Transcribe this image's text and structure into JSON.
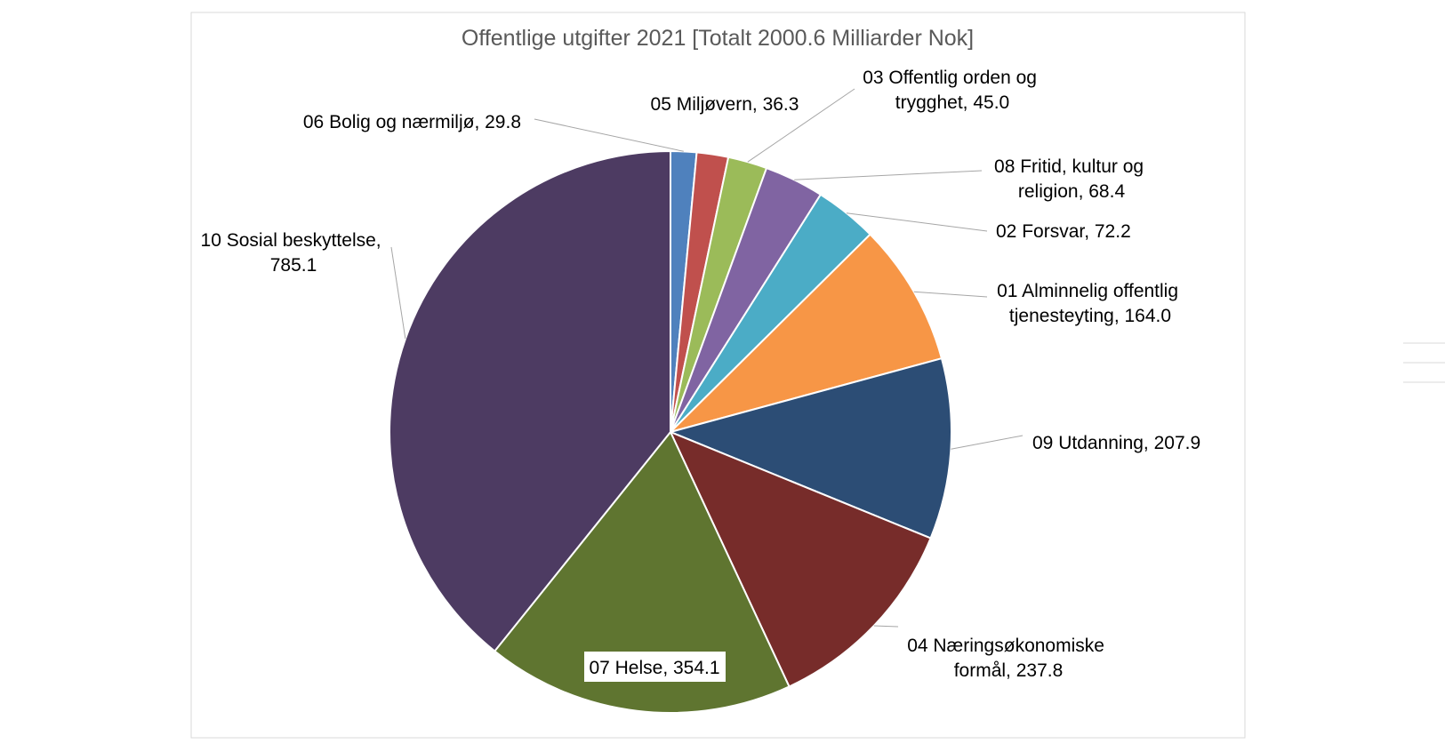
{
  "chart_data": {
    "type": "pie",
    "title": "Offentlige utgifter 2021 [Totalt 2000.6 Milliarder Nok]",
    "legend": "none",
    "slices": [
      {
        "name": "06 Bolig og nærmiljø",
        "value": 29.8,
        "label": "06 Bolig og nærmiljø, 29.8",
        "color": "#4f81bd"
      },
      {
        "name": "05 Miljøvern",
        "value": 36.3,
        "label": "05 Miljøvern, 36.3",
        "color": "#c0504d"
      },
      {
        "name": "03 Offentlig orden og trygghet",
        "value": 45.0,
        "label_lines": [
          "03 Offentlig orden og",
          "trygghet, 45.0"
        ],
        "color": "#9bbb59"
      },
      {
        "name": "08 Fritid, kultur og religion",
        "value": 68.4,
        "label_lines": [
          "08 Fritid, kultur og",
          "religion, 68.4"
        ],
        "color": "#8064a2"
      },
      {
        "name": "02 Forsvar",
        "value": 72.2,
        "label": "02 Forsvar, 72.2",
        "color": "#4bacc6"
      },
      {
        "name": "01 Alminnelig offentlig tjenesteyting",
        "value": 164.0,
        "label_lines": [
          "01 Alminnelig offentlig",
          "tjenesteyting, 164.0"
        ],
        "color": "#f79646"
      },
      {
        "name": "09 Utdanning",
        "value": 207.9,
        "label": "09 Utdanning, 207.9",
        "color": "#2c4d75"
      },
      {
        "name": "04 Næringsøkonomiske formål",
        "value": 237.8,
        "label_lines": [
          "04 Næringsøkonomiske",
          "formål, 237.8"
        ],
        "color": "#772c2a"
      },
      {
        "name": "07 Helse",
        "value": 354.1,
        "label": "07 Helse, 354.1",
        "color": "#5f7530"
      },
      {
        "name": "10 Sosial beskyttelse",
        "value": 785.1,
        "label_lines": [
          "10 Sosial beskyttelse,",
          "785.1"
        ],
        "color": "#4d3b62"
      }
    ]
  }
}
